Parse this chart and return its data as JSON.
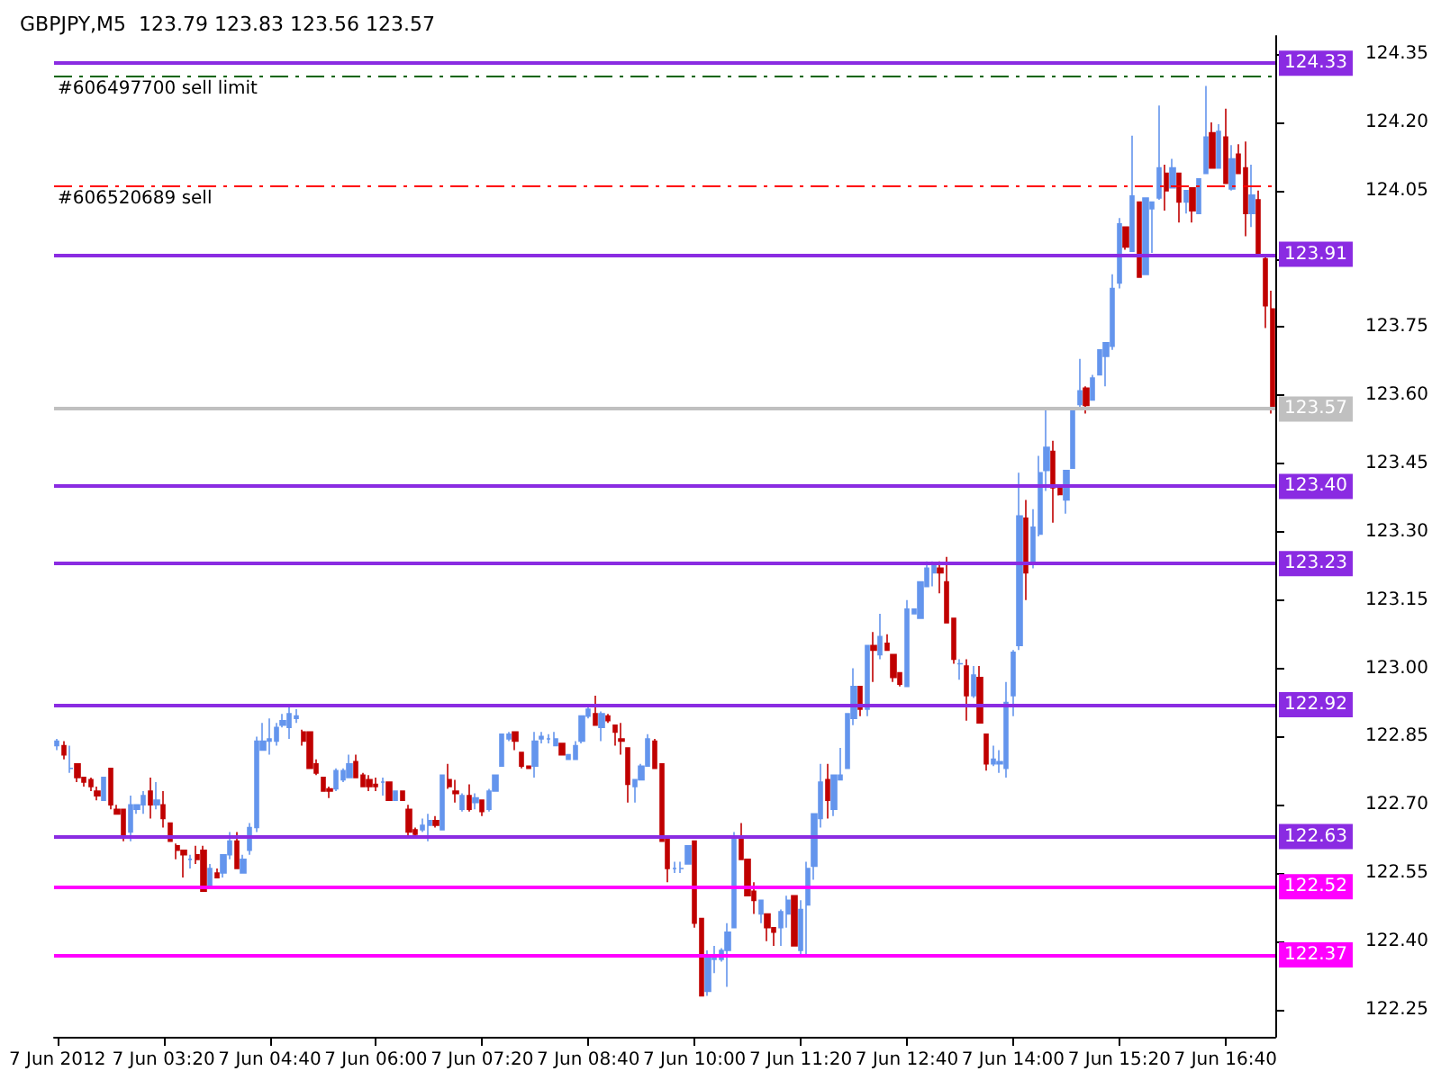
{
  "chart_data": {
    "type": "candlestick",
    "title": "GBPJPY,M5  123.79 123.83 123.56 123.57",
    "categories": [
      "7 Jun 2012",
      null,
      null,
      null,
      null,
      null,
      null,
      null,
      null,
      null,
      null,
      null,
      null,
      null,
      null,
      null,
      "7 Jun 03:20",
      null,
      null,
      null,
      null,
      null,
      null,
      null,
      null,
      null,
      null,
      null,
      null,
      null,
      null,
      null,
      "7 Jun 04:40",
      null,
      null,
      null,
      null,
      null,
      null,
      null,
      null,
      null,
      null,
      null,
      null,
      null,
      null,
      null,
      "7 Jun 06:00",
      null,
      null,
      null,
      null,
      null,
      null,
      null,
      null,
      null,
      null,
      null,
      null,
      null,
      null,
      null,
      "7 Jun 07:20",
      null,
      null,
      null,
      null,
      null,
      null,
      null,
      null,
      null,
      null,
      null,
      null,
      null,
      null,
      null,
      "7 Jun 08:40",
      null,
      null,
      null,
      null,
      null,
      null,
      null,
      null,
      null,
      null,
      null,
      null,
      null,
      null,
      null,
      "7 Jun 10:00",
      null,
      null,
      null,
      null,
      null,
      null,
      null,
      null,
      null,
      null,
      null,
      null,
      null,
      null,
      null,
      "7 Jun 11:20",
      null,
      null,
      null,
      null,
      null,
      null,
      null,
      null,
      null,
      null,
      null,
      null,
      null,
      null,
      null,
      "7 Jun 12:40",
      null,
      null,
      null,
      null,
      null,
      null,
      null,
      null,
      null,
      null,
      null,
      null,
      null,
      null,
      null,
      "7 Jun 14:00",
      null,
      null,
      null,
      null,
      null,
      null,
      null,
      null,
      null,
      null,
      null,
      null,
      null,
      null,
      null,
      "7 Jun 15:20",
      null,
      null,
      null,
      null,
      null,
      null,
      null,
      null,
      null,
      null,
      null,
      null,
      null,
      null,
      null,
      "7 Jun 16:40",
      null,
      null,
      null,
      null,
      null,
      null,
      null
    ],
    "series": [
      {
        "colors": [
          "#6495ed",
          "#c00000",
          "#6495ed",
          "#c00000",
          "#c00000",
          "#c00000",
          "#c00000",
          "#6495ed",
          "#c00000",
          "#c00000",
          "#c00000",
          "#6495ed",
          "#6495ed",
          "#6495ed",
          "#c00000",
          "#6495ed",
          "#c00000",
          "#c00000",
          "#c00000",
          "#c00000",
          "#6495ed",
          "#c00000",
          "#c00000",
          "#6495ed",
          "#c00000",
          "#6495ed",
          "#6495ed",
          "#c00000",
          "#6495ed",
          "#6495ed",
          "#6495ed",
          "#6495ed",
          "#6495ed",
          "#6495ed",
          "#6495ed",
          "#6495ed",
          "#6495ed",
          "#c00000",
          "#c00000",
          "#c00000",
          "#c00000",
          "#c00000",
          "#6495ed",
          "#6495ed",
          "#6495ed",
          "#c00000",
          "#c00000",
          "#c00000",
          "#c00000",
          "#6495ed",
          "#c00000",
          "#6495ed",
          "#c00000",
          "#c00000",
          "#c00000",
          "#6495ed",
          "#6495ed",
          "#c00000",
          "#6495ed",
          "#c00000",
          "#c00000",
          "#6495ed",
          "#c00000",
          "#6495ed",
          "#c00000",
          "#6495ed",
          "#6495ed",
          "#6495ed",
          "#6495ed",
          "#c00000",
          "#c00000",
          "#c00000",
          "#6495ed",
          "#6495ed",
          "#6495ed",
          "#6495ed",
          "#c00000",
          "#6495ed",
          "#6495ed",
          "#6495ed",
          "#6495ed",
          "#c00000",
          "#6495ed",
          "#c00000",
          "#c00000",
          "#c00000",
          "#c00000",
          "#6495ed",
          "#6495ed",
          "#6495ed",
          "#c00000",
          "#c00000",
          "#c00000",
          "#6495ed",
          "#6495ed",
          "#6495ed",
          "#c00000",
          "#c00000",
          "#6495ed",
          "#6495ed",
          "#6495ed",
          "#6495ed",
          "#6495ed",
          "#c00000",
          "#c00000",
          "#c00000",
          "#6495ed",
          "#c00000",
          "#c00000",
          "#6495ed",
          "#6495ed",
          "#c00000",
          "#6495ed",
          "#6495ed",
          "#6495ed",
          "#6495ed",
          "#c00000",
          "#6495ed",
          "#6495ed",
          "#6495ed",
          "#6495ed",
          "#c00000",
          "#6495ed",
          "#c00000",
          "#6495ed",
          "#c00000",
          "#c00000",
          "#c00000",
          "#6495ed",
          "#6495ed",
          "#6495ed",
          "#6495ed",
          "#6495ed",
          "#c00000",
          "#c00000",
          "#c00000",
          "#6495ed",
          "#c00000",
          "#6495ed",
          "#c00000",
          "#c00000",
          "#6495ed",
          "#6495ed",
          "#6495ed",
          "#6495ed",
          "#6495ed",
          "#c00000",
          "#6495ed",
          "#6495ed",
          "#6495ed",
          "#c00000",
          "#c00000",
          "#6495ed",
          "#6495ed",
          "#6495ed",
          "#c00000",
          "#6495ed",
          "#6495ed",
          "#6495ed",
          "#6495ed",
          "#6495ed",
          "#c00000",
          "#6495ed",
          "#c00000",
          "#6495ed",
          "#6495ed",
          "#6495ed",
          "#c00000",
          "#6495ed",
          "#c00000",
          "#6495ed",
          "#c00000",
          "#6495ed",
          "#6495ed",
          "#c00000",
          "#6495ed",
          "#c00000",
          "#6495ed",
          "#c00000",
          "#c00000",
          "#6495ed",
          "#c00000",
          "#c00000",
          "#c00000"
        ],
        "ohlc": [
          [
            122.83,
            122.845,
            122.82,
            122.84
          ],
          [
            122.83,
            122.84,
            122.8,
            122.81
          ],
          [
            122.78,
            122.83,
            122.77,
            122.78
          ],
          [
            122.79,
            122.79,
            122.75,
            122.76
          ],
          [
            122.76,
            122.76,
            122.74,
            122.75
          ],
          [
            122.755,
            122.76,
            122.73,
            122.74
          ],
          [
            122.73,
            122.74,
            122.71,
            122.72
          ],
          [
            122.71,
            122.76,
            122.71,
            122.76
          ],
          [
            122.78,
            122.78,
            122.69,
            122.7
          ],
          [
            122.69,
            122.7,
            122.68,
            122.68
          ],
          [
            122.69,
            122.69,
            122.62,
            122.63
          ],
          [
            122.64,
            122.72,
            122.62,
            122.7
          ],
          [
            122.69,
            122.7,
            122.68,
            122.7
          ],
          [
            122.7,
            122.73,
            122.68,
            122.72
          ],
          [
            122.73,
            122.76,
            122.67,
            122.7
          ],
          [
            122.7,
            122.75,
            122.69,
            122.71
          ],
          [
            122.7,
            122.73,
            122.65,
            122.67
          ],
          [
            122.66,
            122.66,
            122.62,
            122.62
          ],
          [
            122.61,
            122.615,
            122.58,
            122.6
          ],
          [
            122.6,
            122.6,
            122.54,
            122.59
          ],
          [
            122.58,
            122.59,
            122.56,
            122.58
          ],
          [
            122.59,
            122.61,
            122.57,
            122.58
          ],
          [
            122.6,
            122.61,
            122.51,
            122.51
          ],
          [
            122.52,
            122.57,
            122.52,
            122.56
          ],
          [
            122.55,
            122.56,
            122.54,
            122.54
          ],
          [
            122.55,
            122.59,
            122.54,
            122.59
          ],
          [
            122.59,
            122.64,
            122.58,
            122.62
          ],
          [
            122.62,
            122.64,
            122.56,
            122.56
          ],
          [
            122.55,
            122.59,
            122.55,
            122.58
          ],
          [
            122.6,
            122.66,
            122.59,
            122.65
          ],
          [
            122.65,
            122.85,
            122.64,
            122.84
          ],
          [
            122.82,
            122.88,
            122.82,
            122.84
          ],
          [
            122.84,
            122.89,
            122.81,
            122.845
          ],
          [
            122.84,
            122.88,
            122.83,
            122.87
          ],
          [
            122.875,
            122.9,
            122.87,
            122.885
          ],
          [
            122.87,
            122.915,
            122.845,
            122.9
          ],
          [
            122.89,
            122.91,
            122.88,
            122.895
          ],
          [
            122.86,
            122.865,
            122.83,
            122.84
          ],
          [
            122.86,
            122.86,
            122.78,
            122.78
          ],
          [
            122.79,
            122.8,
            122.765,
            122.77
          ],
          [
            122.76,
            122.76,
            122.73,
            122.73
          ],
          [
            122.735,
            122.74,
            122.715,
            122.73
          ],
          [
            122.735,
            122.78,
            122.73,
            122.775
          ],
          [
            122.755,
            122.78,
            122.75,
            122.775
          ],
          [
            122.76,
            122.81,
            122.76,
            122.79
          ],
          [
            122.795,
            122.81,
            122.76,
            122.76
          ],
          [
            122.765,
            122.77,
            122.74,
            122.74
          ],
          [
            122.755,
            122.765,
            122.73,
            122.74
          ],
          [
            122.745,
            122.76,
            122.73,
            122.74
          ],
          [
            122.75,
            122.76,
            122.72,
            122.75
          ],
          [
            122.75,
            122.75,
            122.71,
            122.71
          ],
          [
            122.71,
            122.73,
            122.71,
            122.73
          ],
          [
            122.73,
            122.73,
            122.71,
            122.71
          ],
          [
            122.69,
            122.7,
            122.63,
            122.64
          ],
          [
            122.645,
            122.65,
            122.63,
            122.635
          ],
          [
            122.645,
            122.67,
            122.64,
            122.655
          ],
          [
            122.655,
            122.68,
            122.62,
            122.665
          ],
          [
            122.665,
            122.675,
            122.65,
            122.655
          ],
          [
            122.645,
            122.765,
            122.645,
            122.765
          ],
          [
            122.755,
            122.79,
            122.735,
            122.74
          ],
          [
            122.73,
            122.755,
            122.705,
            122.725
          ],
          [
            122.69,
            122.725,
            122.685,
            122.72
          ],
          [
            122.72,
            122.745,
            122.685,
            122.69
          ],
          [
            122.705,
            122.725,
            122.69,
            122.715
          ],
          [
            122.71,
            122.71,
            122.675,
            122.685
          ],
          [
            122.69,
            122.735,
            122.685,
            122.73
          ],
          [
            122.73,
            122.765,
            122.73,
            122.765
          ],
          [
            122.785,
            122.855,
            122.785,
            122.855
          ],
          [
            122.845,
            122.86,
            122.84,
            122.855
          ],
          [
            122.86,
            122.86,
            122.82,
            122.84
          ],
          [
            122.815,
            122.815,
            122.78,
            122.785
          ],
          [
            122.785,
            122.785,
            122.78,
            122.78
          ],
          [
            122.785,
            122.86,
            122.76,
            122.84
          ],
          [
            122.845,
            122.86,
            122.835,
            122.85
          ],
          [
            122.845,
            122.855,
            122.835,
            122.845
          ],
          [
            122.83,
            122.86,
            122.83,
            122.845
          ],
          [
            122.835,
            122.835,
            122.81,
            122.81
          ],
          [
            122.8,
            122.81,
            122.8,
            122.81
          ],
          [
            122.8,
            122.84,
            122.8,
            122.83
          ],
          [
            122.84,
            122.895,
            122.835,
            122.895
          ],
          [
            122.895,
            122.915,
            122.89,
            122.91
          ],
          [
            122.9,
            122.94,
            122.875,
            122.875
          ],
          [
            122.87,
            122.905,
            122.84,
            122.9
          ],
          [
            122.895,
            122.9,
            122.88,
            122.885
          ],
          [
            122.875,
            122.875,
            122.83,
            122.86
          ],
          [
            122.845,
            122.88,
            122.81,
            122.84
          ],
          [
            122.825,
            122.825,
            122.705,
            122.745
          ],
          [
            122.74,
            122.755,
            122.705,
            122.755
          ],
          [
            122.755,
            122.79,
            122.755,
            122.785
          ],
          [
            122.785,
            122.855,
            122.785,
            122.845
          ],
          [
            122.84,
            122.845,
            122.78,
            122.78
          ],
          [
            122.79,
            122.79,
            122.62,
            122.62
          ],
          [
            122.625,
            122.625,
            122.53,
            122.56
          ],
          [
            122.56,
            122.575,
            122.55,
            122.56
          ],
          [
            122.56,
            122.575,
            122.55,
            122.56
          ],
          [
            122.57,
            122.61,
            122.57,
            122.61
          ],
          [
            122.62,
            122.62,
            122.43,
            122.44
          ],
          [
            122.45,
            122.45,
            122.28,
            122.28
          ],
          [
            122.29,
            122.38,
            122.28,
            122.37
          ],
          [
            122.36,
            122.39,
            122.33,
            122.37
          ],
          [
            122.36,
            122.385,
            122.355,
            122.38
          ],
          [
            122.38,
            122.44,
            122.3,
            122.42
          ],
          [
            122.43,
            122.64,
            122.43,
            122.63
          ],
          [
            122.63,
            122.66,
            122.58,
            122.58
          ],
          [
            122.58,
            122.58,
            122.5,
            122.5
          ],
          [
            122.51,
            122.53,
            122.46,
            122.49
          ],
          [
            122.46,
            122.49,
            122.44,
            122.49
          ],
          [
            122.46,
            122.46,
            122.4,
            122.43
          ],
          [
            122.43,
            122.43,
            122.39,
            122.42
          ],
          [
            122.43,
            122.47,
            122.39,
            122.465
          ],
          [
            122.46,
            122.5,
            122.43,
            122.49
          ],
          [
            122.5,
            122.5,
            122.39,
            122.39
          ],
          [
            122.38,
            122.49,
            122.37,
            122.47
          ],
          [
            122.48,
            122.575,
            122.37,
            122.56
          ],
          [
            122.565,
            122.68,
            122.535,
            122.68
          ],
          [
            122.67,
            122.79,
            122.65,
            122.75
          ],
          [
            122.755,
            122.79,
            122.67,
            122.71
          ],
          [
            122.69,
            122.765,
            122.675,
            122.765
          ],
          [
            122.755,
            122.825,
            122.755,
            122.765
          ],
          [
            122.78,
            122.9,
            122.78,
            122.9
          ],
          [
            122.89,
            123.0,
            122.875,
            122.96
          ],
          [
            122.96,
            122.96,
            122.895,
            122.91
          ],
          [
            122.91,
            123.05,
            122.895,
            123.05
          ],
          [
            123.05,
            123.08,
            122.97,
            123.04
          ],
          [
            123.03,
            123.12,
            123.02,
            123.07
          ],
          [
            123.055,
            123.075,
            123.04,
            123.04
          ],
          [
            123.03,
            123.03,
            122.97,
            122.98
          ],
          [
            122.99,
            122.99,
            122.96,
            122.965
          ],
          [
            122.96,
            123.15,
            122.96,
            123.13
          ],
          [
            123.12,
            123.13,
            123.12,
            123.13
          ],
          [
            123.11,
            123.19,
            123.11,
            123.19
          ],
          [
            123.18,
            123.235,
            123.18,
            123.22
          ],
          [
            123.21,
            123.235,
            123.18,
            123.225
          ],
          [
            123.22,
            123.235,
            123.165,
            123.21
          ],
          [
            123.19,
            123.245,
            123.1,
            123.1
          ],
          [
            123.11,
            123.11,
            123.01,
            123.02
          ],
          [
            123.01,
            123.02,
            122.975,
            123.01
          ],
          [
            123.005,
            123.02,
            122.885,
            122.94
          ],
          [
            122.94,
            123.005,
            122.935,
            122.985
          ],
          [
            122.98,
            123.005,
            122.88,
            122.88
          ],
          [
            122.855,
            122.855,
            122.775,
            122.79
          ],
          [
            122.79,
            122.83,
            122.785,
            122.8
          ],
          [
            122.79,
            122.82,
            122.77,
            122.795
          ],
          [
            122.78,
            122.97,
            122.76,
            122.925
          ],
          [
            122.94,
            123.04,
            122.895,
            123.035
          ],
          [
            123.05,
            123.43,
            123.04,
            123.335
          ],
          [
            123.33,
            123.37,
            123.15,
            123.21
          ],
          [
            123.23,
            123.35,
            123.22,
            123.31
          ],
          [
            123.295,
            123.467,
            123.29,
            123.43
          ],
          [
            123.435,
            123.57,
            123.39,
            123.486
          ],
          [
            123.477,
            123.5,
            123.32,
            123.397
          ],
          [
            123.4,
            123.4,
            123.38,
            123.382
          ],
          [
            123.37,
            123.435,
            123.34,
            123.435
          ],
          [
            123.44,
            123.568,
            123.44,
            123.568
          ],
          [
            123.58,
            123.68,
            123.575,
            123.61
          ],
          [
            123.616,
            123.62,
            123.56,
            123.578
          ],
          [
            123.59,
            123.645,
            123.588,
            123.638
          ],
          [
            123.645,
            123.7,
            123.645,
            123.7
          ],
          [
            123.686,
            123.716,
            123.62,
            123.716
          ],
          [
            123.708,
            123.866,
            123.7,
            123.835
          ],
          [
            123.847,
            123.99,
            123.835,
            123.977
          ],
          [
            123.97,
            123.97,
            123.92,
            123.926
          ],
          [
            123.917,
            124.171,
            123.917,
            124.038
          ],
          [
            124.025,
            124.025,
            123.86,
            123.86
          ],
          [
            123.866,
            124.034,
            123.866,
            124.034
          ],
          [
            124.01,
            124.025,
            123.913,
            124.025
          ],
          [
            124.034,
            124.237,
            124.03,
            124.1
          ],
          [
            124.088,
            124.107,
            124.006,
            124.05
          ],
          [
            124.056,
            124.12,
            124.056,
            124.1
          ],
          [
            124.088,
            124.088,
            123.98,
            124.025
          ],
          [
            124.025,
            124.05,
            124.0,
            124.05
          ],
          [
            124.056,
            124.056,
            123.98,
            124.006
          ],
          [
            124.0,
            124.076,
            124.0,
            124.076
          ],
          [
            124.088,
            124.28,
            124.088,
            124.168
          ],
          [
            124.177,
            124.2,
            124.1,
            124.1
          ],
          [
            124.1,
            124.196,
            124.1,
            124.18
          ],
          [
            124.168,
            124.23,
            124.066,
            124.066
          ],
          [
            124.054,
            124.15,
            124.05,
            124.12
          ],
          [
            124.13,
            124.152,
            124.088,
            124.088
          ],
          [
            124.1,
            124.158,
            123.95,
            124.0
          ],
          [
            124.0,
            124.107,
            123.97,
            124.04
          ],
          [
            124.03,
            124.05,
            123.905,
            123.907
          ],
          [
            123.9,
            123.91,
            123.748,
            123.797
          ],
          [
            123.79,
            123.83,
            123.56,
            123.57
          ]
        ]
      }
    ],
    "ylim": [
      122.19,
      124.39
    ],
    "yticks": [
      {
        "value": 122.25,
        "label": "122.25"
      },
      {
        "value": 122.4,
        "label": "122.40"
      },
      {
        "value": 122.55,
        "label": "122.55"
      },
      {
        "value": 122.7,
        "label": "122.70"
      },
      {
        "value": 122.85,
        "label": "122.85"
      },
      {
        "value": 123,
        "label": "123.00"
      },
      {
        "value": 123.15,
        "label": "123.15"
      },
      {
        "value": 123.3,
        "label": "123.30"
      },
      {
        "value": 123.45,
        "label": "123.45"
      },
      {
        "value": 123.6,
        "label": "123.60"
      },
      {
        "value": 123.75,
        "label": "123.75"
      },
      {
        "value": 123.9,
        "label": null
      },
      {
        "value": 124.05,
        "label": "124.05"
      },
      {
        "value": 124.2,
        "label": "124.20"
      },
      {
        "value": 124.35,
        "label": "124.35"
      }
    ],
    "ref_lines": [
      {
        "axis": "y",
        "value": 124.33,
        "label": "124.33",
        "color": "#8a2be2",
        "line_style": "solid"
      },
      {
        "axis": "y",
        "value": 124.3,
        "label": "#606497700 sell limit",
        "color": "#006400",
        "line_style": "dashed"
      },
      {
        "axis": "y",
        "value": 124.06,
        "label": "#606520689 sell",
        "color": "#ff0000",
        "line_style": "dashed"
      },
      {
        "axis": "y",
        "value": 123.91,
        "label": "123.91",
        "color": "#8a2be2",
        "line_style": "solid"
      },
      {
        "axis": "y",
        "value": 123.57,
        "label": "123.57",
        "color": "#c0c0c0",
        "line_style": "solid"
      },
      {
        "axis": "y",
        "value": 123.4,
        "label": "123.40",
        "color": "#8a2be2",
        "line_style": "solid"
      },
      {
        "axis": "y",
        "value": 123.23,
        "label": "123.23",
        "color": "#8a2be2",
        "line_style": "solid"
      },
      {
        "axis": "y",
        "value": 122.92,
        "label": "122.92",
        "color": "#8a2be2",
        "line_style": "solid"
      },
      {
        "axis": "y",
        "value": 122.63,
        "label": "122.63",
        "color": "#8a2be2",
        "line_style": "solid"
      },
      {
        "axis": "y",
        "value": 122.52,
        "label": "122.52",
        "color": "#ff00ff",
        "line_style": "solid"
      },
      {
        "axis": "y",
        "value": 122.37,
        "label": "122.37",
        "color": "#ff00ff",
        "line_style": "solid"
      }
    ],
    "grid": false
  }
}
